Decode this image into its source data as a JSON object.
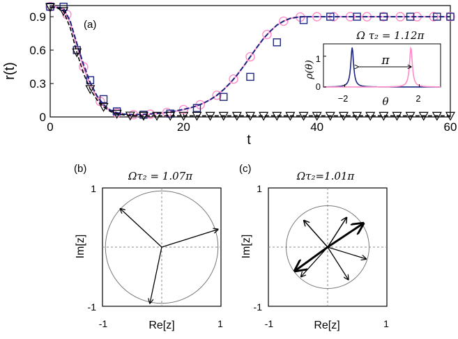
{
  "chart_data": [
    {
      "id": "a",
      "type": "line",
      "panel_label": "(a)",
      "xlabel": "t",
      "ylabel": "r(t)",
      "xlim": [
        0,
        60
      ],
      "ylim": [
        0,
        1
      ],
      "xticks": [
        0,
        20,
        40,
        60
      ],
      "xtick_labels": [
        "0",
        "20",
        "40",
        "60"
      ],
      "yticks": [
        0,
        0.3,
        0.6,
        0.9
      ],
      "ytick_labels": [
        "0",
        "0.3",
        "0.6",
        "0.9"
      ],
      "grid": false,
      "colors": {
        "pink": "#ff8cc8",
        "navy": "#1a237e",
        "black": "#000000"
      },
      "series": [
        {
          "style": "pink-solid-circles",
          "x": [
            0,
            1,
            2,
            3,
            4,
            5,
            6,
            7,
            8,
            9,
            10,
            11,
            12,
            13,
            14,
            15,
            16,
            17,
            18,
            19,
            20,
            21,
            22,
            23,
            24,
            25,
            26,
            27,
            28,
            29,
            30,
            31,
            32,
            33,
            34,
            35,
            36,
            37,
            38,
            39,
            40,
            42,
            44,
            46,
            48,
            50,
            52,
            54,
            56,
            58,
            60
          ],
          "values": [
            0.99,
            0.985,
            0.97,
            0.85,
            0.64,
            0.45,
            0.29,
            0.18,
            0.1,
            0.058,
            0.035,
            0.024,
            0.02,
            0.02,
            0.022,
            0.025,
            0.03,
            0.036,
            0.044,
            0.054,
            0.066,
            0.08,
            0.1,
            0.124,
            0.155,
            0.195,
            0.245,
            0.305,
            0.375,
            0.455,
            0.54,
            0.625,
            0.705,
            0.77,
            0.825,
            0.86,
            0.885,
            0.895,
            0.9,
            0.9,
            0.9,
            0.9,
            0.9,
            0.9,
            0.9,
            0.9,
            0.9,
            0.9,
            0.9,
            0.9,
            0.9
          ],
          "markers_x": [
            0,
            2.5,
            5,
            7.5,
            10,
            12.5,
            15,
            17.5,
            20,
            22.5,
            25,
            27.5,
            30,
            32.5,
            35,
            37.5,
            40,
            42.5,
            45,
            47.5,
            50,
            52.5,
            55,
            57.5,
            60
          ],
          "markers_y": [
            0.99,
            0.92,
            0.45,
            0.14,
            0.035,
            0.02,
            0.025,
            0.04,
            0.066,
            0.11,
            0.195,
            0.34,
            0.54,
            0.74,
            0.86,
            0.897,
            0.9,
            0.9,
            0.9,
            0.9,
            0.9,
            0.9,
            0.9,
            0.9,
            0.9
          ]
        },
        {
          "style": "navy-dashed-squares",
          "x": [
            0,
            1,
            2,
            3,
            4,
            5,
            6,
            7,
            8,
            9,
            10,
            11,
            12,
            13,
            14,
            15,
            16,
            17,
            18,
            19,
            20,
            21,
            22,
            23,
            24,
            25,
            26,
            27,
            28,
            29,
            30,
            31,
            32,
            33,
            34,
            35,
            36,
            37,
            38,
            39,
            40,
            42,
            44,
            46,
            48,
            50,
            52,
            54,
            56,
            58,
            60
          ],
          "values": [
            0.985,
            0.985,
            0.975,
            0.86,
            0.66,
            0.47,
            0.31,
            0.19,
            0.11,
            0.062,
            0.038,
            0.026,
            0.022,
            0.022,
            0.024,
            0.027,
            0.032,
            0.038,
            0.046,
            0.056,
            0.068,
            0.082,
            0.1,
            0.124,
            0.155,
            0.195,
            0.245,
            0.305,
            0.375,
            0.455,
            0.54,
            0.625,
            0.705,
            0.77,
            0.825,
            0.86,
            0.885,
            0.895,
            0.9,
            0.9,
            0.9,
            0.9,
            0.9,
            0.9,
            0.9,
            0.9,
            0.9,
            0.9,
            0.9,
            0.9,
            0.9
          ],
          "markers_x": [
            0,
            2,
            4,
            6,
            8,
            10,
            14,
            18,
            22,
            26,
            30,
            34,
            38,
            42,
            46,
            50,
            54,
            58,
            60
          ],
          "markers_y": [
            0.99,
            0.99,
            0.6,
            0.33,
            0.16,
            0.05,
            0.02,
            0.03,
            0.08,
            0.18,
            0.36,
            0.67,
            0.87,
            0.9,
            0.9,
            0.9,
            0.9,
            0.9,
            0.9
          ]
        },
        {
          "style": "black-dashed-triangles",
          "x": [
            0,
            1,
            2,
            3,
            4,
            5,
            6,
            7,
            8,
            9,
            10,
            11,
            12,
            13,
            14,
            16,
            20,
            30,
            40,
            50,
            60
          ],
          "values": [
            0.985,
            0.98,
            0.95,
            0.8,
            0.58,
            0.39,
            0.25,
            0.155,
            0.09,
            0.05,
            0.028,
            0.018,
            0.012,
            0.01,
            0.01,
            0.01,
            0.01,
            0.01,
            0.01,
            0.01,
            0.01
          ],
          "markers_x": [
            0,
            2,
            4,
            6,
            8,
            10,
            12,
            14,
            16,
            18,
            20,
            22,
            24,
            26,
            28,
            30,
            32,
            34,
            36,
            38,
            40,
            42,
            44,
            46,
            48,
            50,
            52,
            54,
            56,
            58,
            60
          ],
          "markers_y": [
            0.985,
            0.95,
            0.58,
            0.25,
            0.09,
            0.028,
            0.012,
            0.01,
            0.01,
            0.01,
            0.01,
            0.01,
            0.01,
            0.01,
            0.01,
            0.01,
            0.01,
            0.01,
            0.01,
            0.01,
            0.01,
            0.01,
            0.01,
            0.01,
            0.01,
            0.01,
            0.01,
            0.01,
            0.01,
            0.01,
            0.01
          ]
        }
      ],
      "inset": {
        "type": "line",
        "title": "Ω τ₂ = 1.12π",
        "xlabel": "θ",
        "ylabel": "ρ(θ)",
        "xlim": [
          -3.14,
          3.14
        ],
        "ylim": [
          0,
          1.4
        ],
        "xticks": [
          -2,
          2
        ],
        "xtick_labels": [
          "−2",
          "2"
        ],
        "yticks": [
          0,
          1
        ],
        "ytick_labels": [
          "0",
          "1"
        ],
        "annotation": "π",
        "series": [
          {
            "color": "navy",
            "center": -1.6,
            "width": 0.09,
            "peak": 1.28
          },
          {
            "color": "pink",
            "center": 1.55,
            "width": 0.09,
            "peak": 1.28
          }
        ]
      }
    },
    {
      "id": "b",
      "type": "scatter",
      "panel_label": "(b)",
      "title": "Ωτ₂ = 1.07π",
      "xlabel": "Re[z]",
      "ylabel": "Im[z]",
      "xlim": [
        -1,
        1
      ],
      "ylim": [
        -1,
        1
      ],
      "xtick_labels": [
        "-1",
        "1"
      ],
      "ytick_labels": [
        "-1",
        "1"
      ],
      "unit_circle_radius": 0.95,
      "vectors": [
        {
          "x": 0.95,
          "y": 0.3,
          "w": 1.3
        },
        {
          "x": -0.7,
          "y": 0.65,
          "w": 1.3
        },
        {
          "x": -0.2,
          "y": -0.95,
          "w": 1.3
        }
      ]
    },
    {
      "id": "c",
      "type": "scatter",
      "panel_label": "(c)",
      "title": "Ωτ₂=1.01π",
      "xlabel": "Re[z]",
      "ylabel": "Im[z]",
      "xlim": [
        -1,
        1
      ],
      "ylim": [
        -1,
        1
      ],
      "xtick_labels": [
        "-1",
        "1"
      ],
      "ytick_labels": [
        "-1",
        "1"
      ],
      "unit_circle_radius": 0.7,
      "vectors": [
        {
          "x": 0.6,
          "y": 0.4,
          "w": 3
        },
        {
          "x": -0.55,
          "y": -0.4,
          "w": 3
        },
        {
          "x": -0.4,
          "y": 0.45,
          "w": 1.5
        },
        {
          "x": 0.32,
          "y": 0.5,
          "w": 1.5
        },
        {
          "x": 0.65,
          "y": -0.2,
          "w": 1.3
        },
        {
          "x": 0.35,
          "y": -0.55,
          "w": 1.3
        },
        {
          "x": -0.45,
          "y": -0.5,
          "w": 1.3
        }
      ]
    }
  ]
}
